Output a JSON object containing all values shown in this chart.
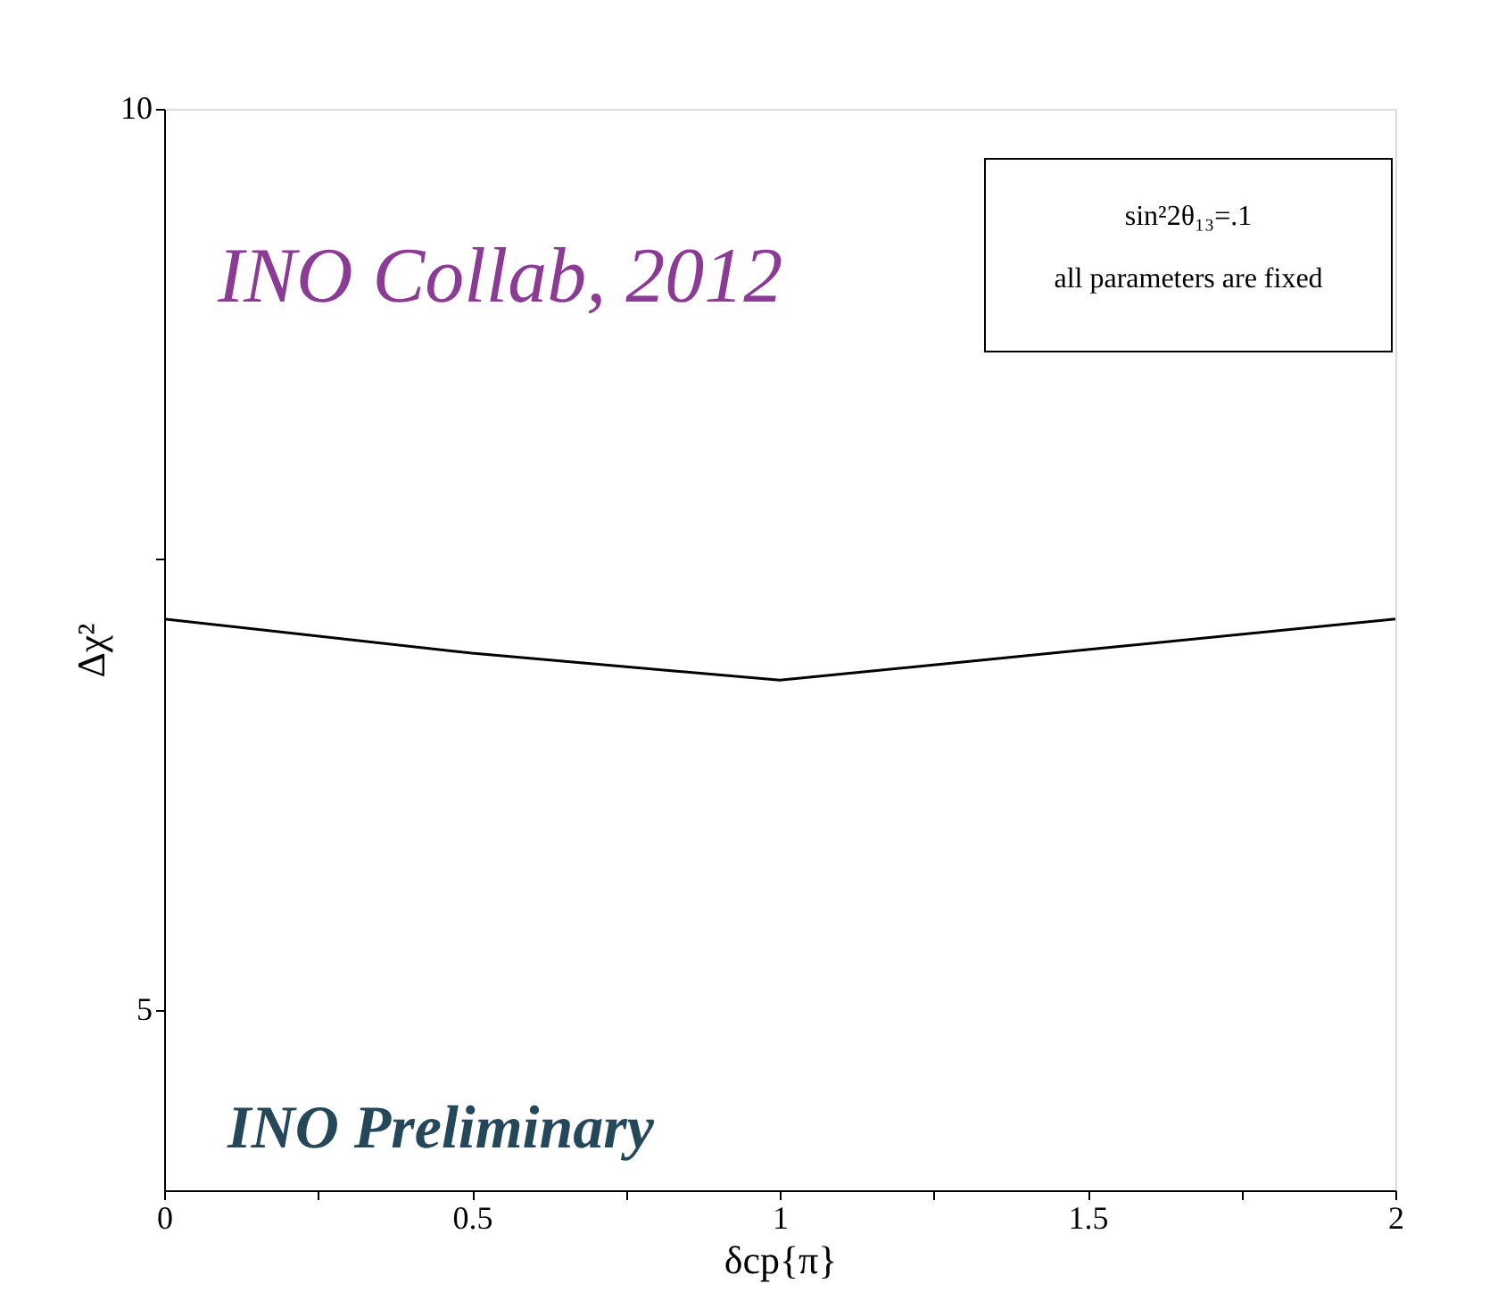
{
  "chart_data": {
    "type": "line",
    "xlabel": "δcp{π}",
    "ylabel": "Δχ²",
    "x": [
      0,
      0.5,
      1,
      1.5,
      2
    ],
    "series": [
      {
        "color": "#000000",
        "values": [
          7.17,
          6.98,
          6.83,
          7.0,
          7.17
        ]
      }
    ],
    "xlim": [
      0,
      2
    ],
    "ylim": [
      4,
      10
    ],
    "xticks": [
      0,
      {
        "value": 0.25,
        "label": null
      },
      0.5,
      {
        "value": 0.75,
        "label": null
      },
      1,
      {
        "value": 1.25,
        "label": null
      },
      1.5,
      {
        "value": 1.75,
        "label": null
      },
      2
    ],
    "yticks": [
      5,
      {
        "value": 7.5,
        "label": null
      },
      10
    ],
    "grid": false,
    "marker": "none",
    "line_style": "solid",
    "annotations": [
      "INO Collab, 2012",
      "sin²2θ₁₃=.1",
      "all parameters are  fixed",
      "INO Preliminary"
    ]
  }
}
